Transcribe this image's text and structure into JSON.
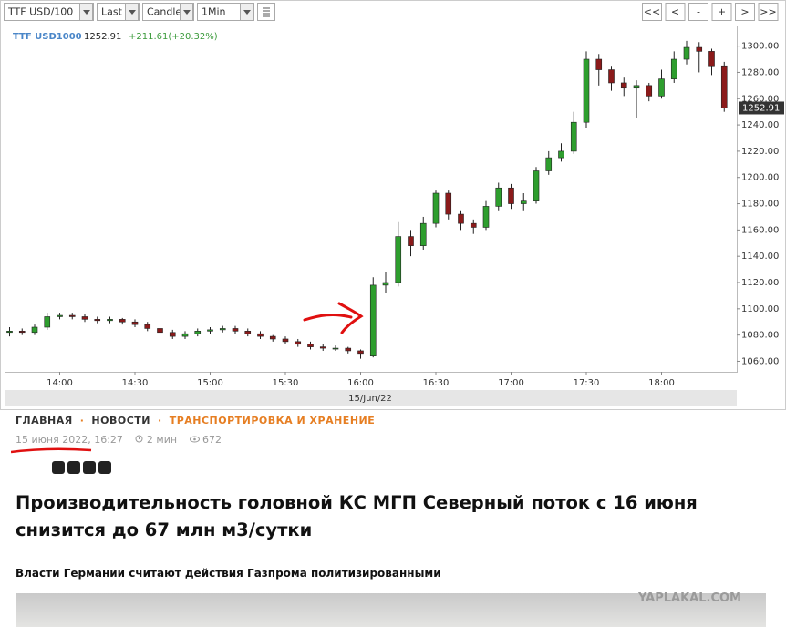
{
  "toolbar": {
    "selects": [
      "TTF USD/100",
      "Last",
      "Candle",
      "1Min"
    ],
    "buttons": [
      "<<",
      "<",
      "-",
      "+",
      ">",
      ">>"
    ]
  },
  "chart_data": {
    "type": "candlestick",
    "symbol": "TTF USD1000",
    "change": "+211.61(+20.32%)",
    "last": 1252.91,
    "x_label": "15/Jun/22",
    "x": [
      "13:40",
      "13:45",
      "13:50",
      "13:55",
      "14:00",
      "14:05",
      "14:10",
      "14:15",
      "14:20",
      "14:25",
      "14:30",
      "14:35",
      "14:40",
      "14:45",
      "14:50",
      "14:55",
      "15:00",
      "15:05",
      "15:10",
      "15:15",
      "15:20",
      "15:25",
      "15:30",
      "15:35",
      "15:40",
      "15:45",
      "15:50",
      "15:55",
      "16:00",
      "16:05",
      "16:10",
      "16:15",
      "16:20",
      "16:25",
      "16:30",
      "16:35",
      "16:40",
      "16:45",
      "16:50",
      "16:55",
      "17:00",
      "17:05",
      "17:10",
      "17:15",
      "17:20",
      "17:25",
      "17:30",
      "17:35",
      "17:40",
      "17:45",
      "17:50",
      "17:55",
      "18:00",
      "18:05",
      "18:10",
      "18:15",
      "18:20",
      "18:25"
    ],
    "open": [
      1082,
      1083,
      1082,
      1086,
      1094,
      1095,
      1094,
      1092,
      1091,
      1092,
      1090,
      1088,
      1085,
      1082,
      1079,
      1081,
      1083,
      1084,
      1085,
      1083,
      1081,
      1079,
      1077,
      1075,
      1073,
      1071,
      1070,
      1070,
      1068,
      1064,
      1118,
      1120,
      1155,
      1148,
      1165,
      1188,
      1172,
      1165,
      1162,
      1178,
      1192,
      1180,
      1182,
      1205,
      1215,
      1220,
      1242,
      1290,
      1282,
      1272,
      1268,
      1270,
      1262,
      1275,
      1290,
      1299,
      1296,
      1285
    ],
    "high": [
      1086,
      1085,
      1088,
      1097,
      1097,
      1097,
      1096,
      1094,
      1094,
      1093,
      1092,
      1090,
      1087,
      1084,
      1083,
      1085,
      1086,
      1087,
      1087,
      1085,
      1083,
      1080,
      1079,
      1077,
      1075,
      1073,
      1072,
      1071,
      1069,
      1124,
      1128,
      1166,
      1160,
      1170,
      1190,
      1190,
      1175,
      1168,
      1182,
      1196,
      1195,
      1188,
      1208,
      1220,
      1226,
      1250,
      1296,
      1294,
      1285,
      1276,
      1274,
      1272,
      1282,
      1296,
      1304,
      1303,
      1298,
      1288
    ],
    "low": [
      1079,
      1080,
      1080,
      1084,
      1092,
      1092,
      1090,
      1089,
      1089,
      1088,
      1086,
      1083,
      1078,
      1077,
      1077,
      1079,
      1081,
      1082,
      1081,
      1079,
      1077,
      1075,
      1073,
      1071,
      1069,
      1068,
      1068,
      1066,
      1062,
      1063,
      1112,
      1117,
      1140,
      1145,
      1162,
      1168,
      1160,
      1157,
      1160,
      1175,
      1176,
      1175,
      1180,
      1202,
      1212,
      1218,
      1238,
      1270,
      1266,
      1262,
      1245,
      1258,
      1260,
      1272,
      1286,
      1280,
      1278,
      1250
    ],
    "close": [
      1083,
      1082,
      1086,
      1094,
      1095,
      1094,
      1092,
      1091,
      1092,
      1090,
      1088,
      1085,
      1082,
      1079,
      1081,
      1083,
      1084,
      1085,
      1083,
      1081,
      1079,
      1077,
      1075,
      1073,
      1071,
      1070,
      1070,
      1068,
      1066,
      1118,
      1120,
      1155,
      1148,
      1165,
      1188,
      1172,
      1165,
      1162,
      1178,
      1192,
      1180,
      1182,
      1205,
      1215,
      1220,
      1242,
      1290,
      1282,
      1272,
      1268,
      1270,
      1262,
      1275,
      1290,
      1299,
      1296,
      1285,
      1253
    ],
    "up_color": "#2e9e2e",
    "down_color": "#8b1a1a",
    "xlim": [
      "13:38",
      "18:30"
    ],
    "xticks": [
      "14:00",
      "14:30",
      "15:00",
      "15:30",
      "16:00",
      "16:30",
      "17:00",
      "17:30",
      "18:00"
    ],
    "ylim": [
      1052,
      1315
    ],
    "yticks": [
      {
        "value": 1060,
        "label": "1060.00"
      },
      {
        "value": 1080,
        "label": "1080.00"
      },
      {
        "value": 1100,
        "label": "1100.00"
      },
      {
        "value": 1120,
        "label": "1120.00"
      },
      {
        "value": 1140,
        "label": "1140.00"
      },
      {
        "value": 1160,
        "label": "1160.00"
      },
      {
        "value": 1180,
        "label": "1180.00"
      },
      {
        "value": 1200,
        "label": "1200.00"
      },
      {
        "value": 1220,
        "label": "1220.00"
      },
      {
        "value": 1240,
        "label": "1240.00"
      },
      {
        "value": 1260,
        "label": "1260.00"
      },
      {
        "value": 1280,
        "label": "1280.00"
      },
      {
        "value": 1300,
        "label": "1300.00"
      }
    ],
    "grid": false
  },
  "article": {
    "breadcrumbs": [
      "ГЛАВНАЯ",
      "НОВОСТИ",
      "ТРАНСПОРТИРОВКА И ХРАНЕНИЕ"
    ],
    "separator": "·",
    "date": "15 июня 2022, 16:27",
    "read_time": "2 мин",
    "views": "672",
    "title": "Производительность головной КС МГП Северный поток с 16 июня снизится до 67 млн м3/сутки",
    "subtitle": "Власти Германии считают действия Газпрома политизированными"
  },
  "watermark": "YAPLAKAL.COM"
}
